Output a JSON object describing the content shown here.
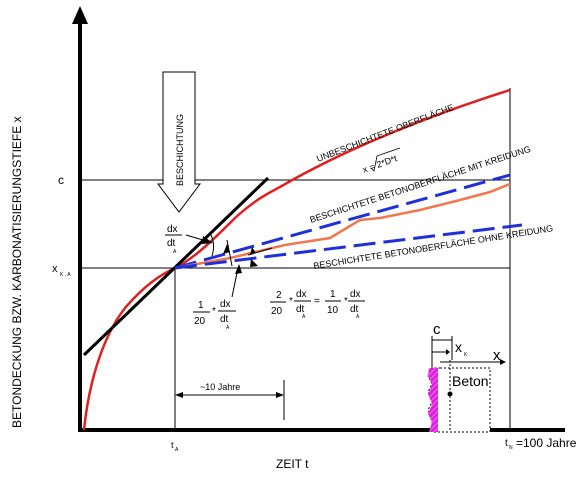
{
  "axes": {
    "y_label": "BETONDECKUNG BZW. KARBONATISIERUNGSTIEFE x",
    "x_label": "ZEIT t",
    "c_label": "c",
    "xka_label": "x",
    "xka_sub": "K , A",
    "ta_label": "t",
    "ta_sub": "A",
    "tn_label": "t",
    "tn_sub": "N",
    "tn_value": "=100 Jahre"
  },
  "labels": {
    "beschichtung": "BESCHICHTUNG",
    "unbeschichtet": "UNBESCHICHTETE OBERFLÄCHE",
    "formula_x": "x = 2*D*t",
    "mit_kreidung": "BESCHICHTETE BETONOBERFLÄCHE MIT KREIDUNG",
    "ohne_kreidung": "BESCHICHTETE BETONOBERFLÄCHE OHNE KREIDUNG",
    "interval": "~10 Jahre"
  },
  "formulas": {
    "dx": "dx",
    "dt": "dt",
    "one": "1",
    "twenty": "20",
    "two": "2",
    "ten": "10",
    "mult": "*",
    "equals": "=",
    "sub_a": "A"
  },
  "inset": {
    "c": "c",
    "xk": "x",
    "xk_sub": "K",
    "x": "x",
    "beton": "Beton"
  },
  "colors": {
    "uncoated_curve": "#e02020",
    "chalking_line": "#2030d8",
    "coated_curve": "#f07850",
    "tangent": "#000000",
    "coating_layer": "#e020e0"
  }
}
